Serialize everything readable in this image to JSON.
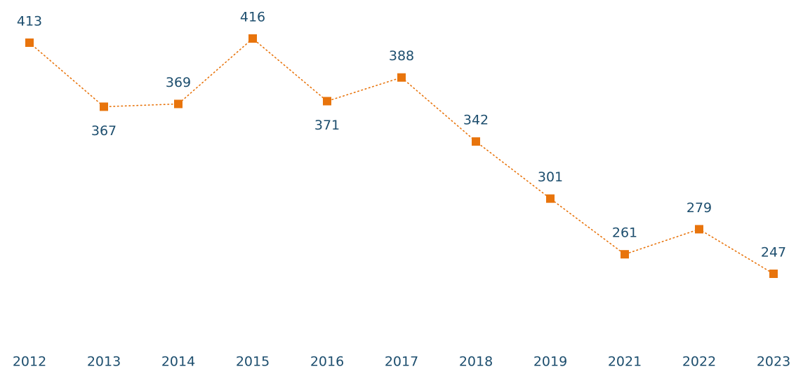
{
  "chart_data": {
    "type": "line",
    "categories": [
      "2012",
      "2013",
      "2014",
      "2015",
      "2016",
      "2017",
      "2018",
      "2019",
      "2021",
      "2022",
      "2023"
    ],
    "series": [
      {
        "color": "#e8740c",
        "values": [
          413,
          367,
          369,
          416,
          371,
          388,
          342,
          301,
          261,
          279,
          247
        ]
      }
    ]
  }
}
